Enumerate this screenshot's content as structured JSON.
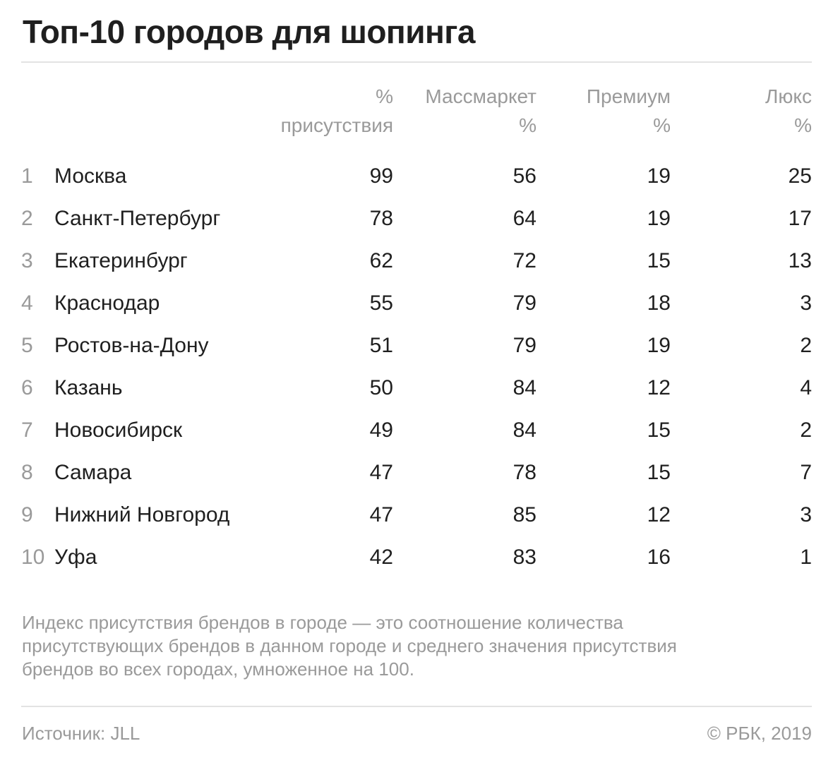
{
  "title": "Топ-10 городов для шопинга",
  "chart_data": {
    "type": "table",
    "title": "Топ-10 городов для шопинга",
    "columns": [
      {
        "lines": [
          "%",
          "присутствия"
        ]
      },
      {
        "lines": [
          "Массмаркет",
          "%"
        ]
      },
      {
        "lines": [
          "Премиум",
          "%"
        ]
      },
      {
        "lines": [
          "Люкс",
          "%"
        ]
      }
    ],
    "rows": [
      {
        "rank": "1",
        "city": "Москва",
        "values": [
          "99",
          "56",
          "19",
          "25"
        ]
      },
      {
        "rank": "2",
        "city": "Санкт-Петербург",
        "values": [
          "78",
          "64",
          "19",
          "17"
        ]
      },
      {
        "rank": "3",
        "city": "Екатеринбург",
        "values": [
          "62",
          "72",
          "15",
          "13"
        ]
      },
      {
        "rank": "4",
        "city": "Краснодар",
        "values": [
          "55",
          "79",
          "18",
          "3"
        ]
      },
      {
        "rank": "5",
        "city": "Ростов-на-Дону",
        "values": [
          "51",
          "79",
          "19",
          "2"
        ]
      },
      {
        "rank": "6",
        "city": "Казань",
        "values": [
          "50",
          "84",
          "12",
          "4"
        ]
      },
      {
        "rank": "7",
        "city": "Новосибирск",
        "values": [
          "49",
          "84",
          "15",
          "2"
        ]
      },
      {
        "rank": "8",
        "city": "Самара",
        "values": [
          "47",
          "78",
          "15",
          "7"
        ]
      },
      {
        "rank": "9",
        "city": "Нижний Новгород",
        "values": [
          "47",
          "85",
          "12",
          "3"
        ]
      },
      {
        "rank": "10",
        "city": "Уфа",
        "values": [
          "42",
          "83",
          "16",
          "1"
        ]
      }
    ]
  },
  "note_lines": [
    "Индекс присутствия брендов в городе — это соотношение количества",
    "присутствующих брендов в данном городе и среднего значения присутствия",
    "брендов во всех городах, умноженное на 100."
  ],
  "source": "Источник: JLL",
  "copyright": "© РБК, 2019",
  "colors": {
    "text": "#1f1f1f",
    "muted": "#9a9a9a",
    "rule": "#e3e3e3"
  }
}
